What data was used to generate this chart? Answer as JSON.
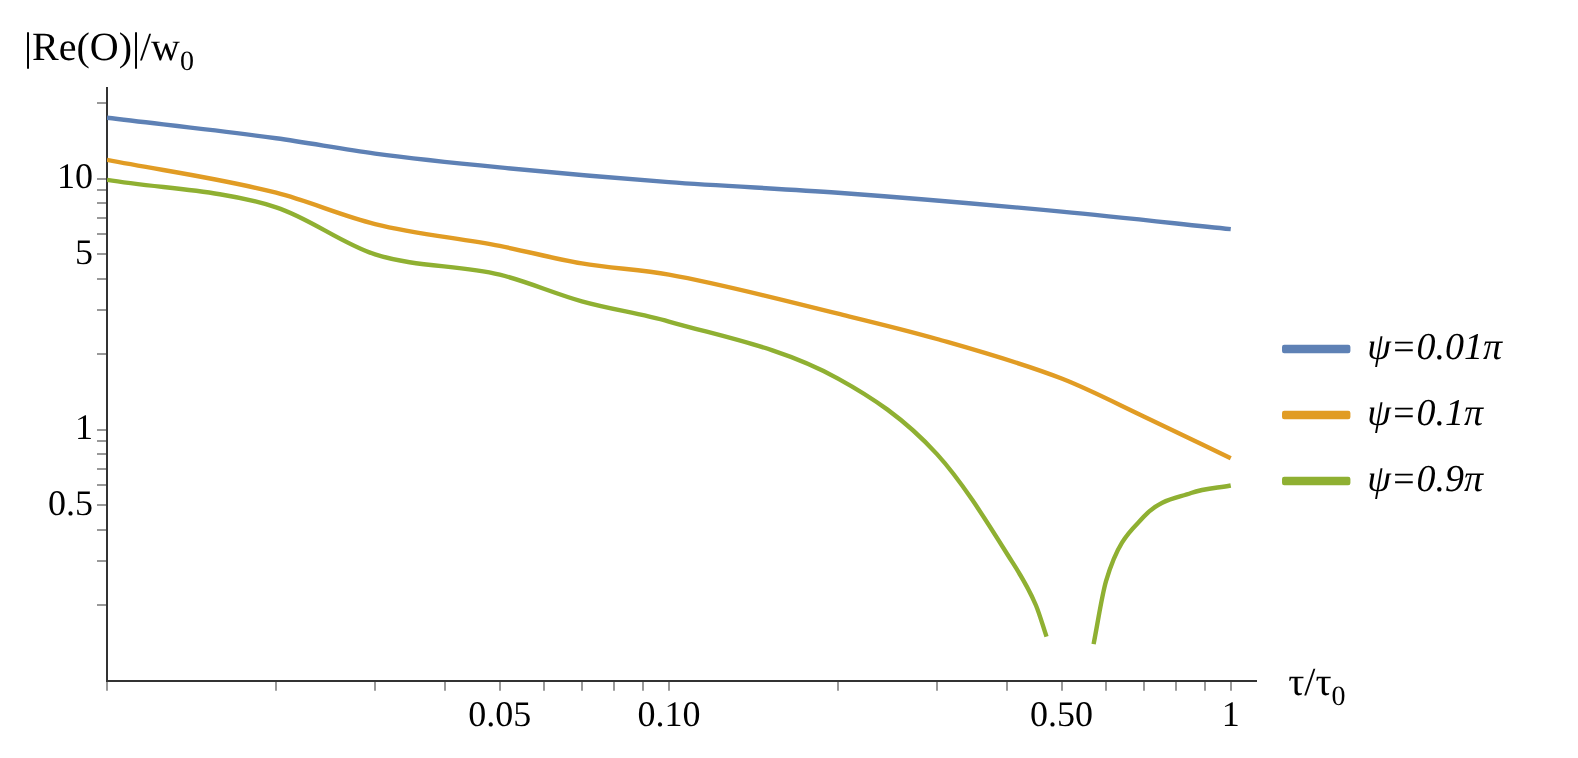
{
  "chart_data": {
    "type": "line",
    "xlabel": "τ/τ$_{0}$",
    "ylabel": "|Re(O)|/w$_{0}$",
    "log": "xy",
    "legend": "right",
    "grid": false,
    "marker": "none",
    "line_style": "solid",
    "xlim": [
      0.01,
      1.11
    ],
    "ylim": [
      0.1,
      23
    ],
    "xticks": [
      {
        "value": 0.01,
        "label": null
      },
      {
        "value": 0.02,
        "label": null
      },
      {
        "value": 0.03,
        "label": null
      },
      {
        "value": 0.04,
        "label": null
      },
      0.05,
      {
        "value": 0.06,
        "label": null
      },
      {
        "value": 0.07,
        "label": null
      },
      {
        "value": 0.08,
        "label": null
      },
      {
        "value": 0.09,
        "label": null
      },
      {
        "value": 0.1,
        "label": "0.10"
      },
      {
        "value": 0.2,
        "label": null
      },
      {
        "value": 0.3,
        "label": null
      },
      {
        "value": 0.4,
        "label": null
      },
      {
        "value": 0.5,
        "label": "0.50"
      },
      {
        "value": 0.6,
        "label": null
      },
      {
        "value": 0.7,
        "label": null
      },
      {
        "value": 0.8,
        "label": null
      },
      {
        "value": 0.9,
        "label": null
      },
      1
    ],
    "yticks": [
      {
        "value": 0.2,
        "label": null
      },
      {
        "value": 0.3,
        "label": null
      },
      {
        "value": 0.4,
        "label": null
      },
      0.5,
      {
        "value": 0.6,
        "label": null
      },
      {
        "value": 0.7,
        "label": null
      },
      {
        "value": 0.8,
        "label": null
      },
      {
        "value": 0.9,
        "label": null
      },
      1,
      {
        "value": 2,
        "label": null
      },
      {
        "value": 3,
        "label": null
      },
      {
        "value": 4,
        "label": null
      },
      5,
      {
        "value": 6,
        "label": null
      },
      {
        "value": 7,
        "label": null
      },
      {
        "value": 8,
        "label": null
      },
      {
        "value": 9,
        "label": null
      },
      10,
      {
        "value": 20,
        "label": null
      }
    ],
    "series": [
      {
        "name": "ψ=0.01π",
        "color": "#5e81b5",
        "x": [
          0.01,
          0.02,
          0.03,
          0.05,
          0.1,
          0.2,
          0.5,
          1
        ],
        "values": [
          17.5,
          14.5,
          12.6,
          11.1,
          9.7,
          8.8,
          7.4,
          6.3
        ]
      },
      {
        "name": "ψ=0.1π",
        "color": "#e19c24",
        "x": [
          0.01,
          0.02,
          0.03,
          0.05,
          0.07,
          0.1,
          0.2,
          0.3,
          0.5,
          0.7,
          1
        ],
        "values": [
          11.9,
          8.8,
          6.6,
          5.4,
          4.6,
          4.15,
          2.9,
          2.3,
          1.6,
          1.13,
          0.77
        ]
      },
      {
        "name": "ψ=0.9π",
        "color": "#8fb032",
        "x": [
          0.01,
          0.02,
          0.03,
          0.05,
          0.07,
          0.1,
          0.2,
          0.3,
          0.4,
          0.45,
          0.47,
          0.49,
          0.558,
          0.57,
          0.6,
          0.7,
          0.85,
          1
        ],
        "values": [
          9.9,
          7.7,
          5.0,
          4.15,
          3.25,
          2.7,
          1.6,
          0.8,
          0.32,
          0.2,
          0.15,
          null,
          null,
          0.14,
          0.25,
          0.45,
          0.56,
          0.6
        ]
      }
    ]
  }
}
